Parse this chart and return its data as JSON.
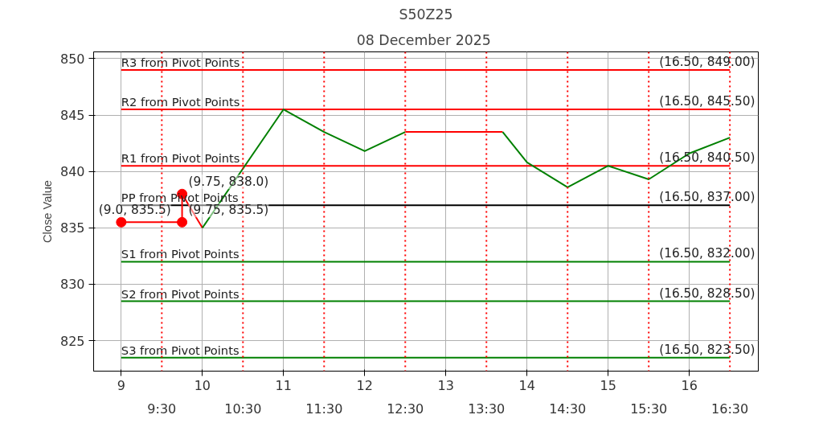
{
  "chart_data": {
    "type": "line",
    "title": "S50Z25",
    "subtitle": "08 December  2025",
    "ylabel": "Close Value",
    "xlim": [
      8.66,
      16.85
    ],
    "ylim": [
      822.3,
      850.6
    ],
    "xticks": [
      9,
      10,
      11,
      12,
      13,
      14,
      15,
      16
    ],
    "x2ticks": [
      {
        "value": 9.5,
        "label": "9:30"
      },
      {
        "value": 10.5,
        "label": "10:30"
      },
      {
        "value": 11.5,
        "label": "11:30"
      },
      {
        "value": 12.5,
        "label": "12:30"
      },
      {
        "value": 13.5,
        "label": "13:30"
      },
      {
        "value": 14.5,
        "label": "14:30"
      },
      {
        "value": 15.5,
        "label": "15:30"
      },
      {
        "value": 16.5,
        "label": "16:30"
      }
    ],
    "yticks": [
      825,
      830,
      835,
      840,
      845,
      850
    ],
    "x2lim": [
      8.66,
      16.85
    ],
    "grid": true,
    "series": [
      {
        "color": "#ff0000",
        "marker": "circle",
        "x": [
          9,
          9.75,
          9.75
        ],
        "values": [
          835.5,
          835.5,
          838.0
        ]
      },
      {
        "color": "#ff0000",
        "marker": "none",
        "x": [
          9.75,
          10
        ],
        "values": [
          838.0,
          835.0
        ]
      },
      {
        "color": "#008000",
        "marker": "none",
        "x": [
          10,
          11,
          11.5,
          12,
          12.5
        ],
        "values": [
          835.0,
          845.5,
          843.5,
          841.8,
          843.5
        ]
      },
      {
        "color": "#ff0000",
        "marker": "none",
        "x": [
          12.5,
          13.7
        ],
        "values": [
          843.5,
          843.5
        ]
      },
      {
        "color": "#008000",
        "marker": "none",
        "x": [
          13.7,
          14,
          14.5,
          15,
          15.5,
          16,
          16.5
        ],
        "values": [
          843.5,
          840.8,
          838.6,
          840.5,
          839.3,
          841.6,
          843.0
        ]
      }
    ],
    "ref_lines": [
      {
        "axis": "y",
        "value": 849.0,
        "label": "R3 from Pivot Points",
        "color": "#ff0000"
      },
      {
        "axis": "y",
        "value": 845.5,
        "label": "R2 from Pivot Points",
        "color": "#ff0000"
      },
      {
        "axis": "y",
        "value": 840.5,
        "label": "R1 from Pivot Points",
        "color": "#ff0000"
      },
      {
        "axis": "y",
        "value": 837.0,
        "label": "PP from Pivot Points",
        "color": "#000000"
      },
      {
        "axis": "y",
        "value": 832.0,
        "label": "S1 from Pivot Points",
        "color": "#008000"
      },
      {
        "axis": "y",
        "value": 828.5,
        "label": "S2 from Pivot Points",
        "color": "#008000"
      },
      {
        "axis": "y",
        "value": 823.5,
        "label": "S3 from Pivot Points",
        "color": "#008000"
      },
      {
        "axis": "x",
        "value": 9.5,
        "color": "#ff0000",
        "line_style": "dotted"
      },
      {
        "axis": "x",
        "value": 10.5,
        "color": "#ff0000",
        "line_style": "dotted"
      },
      {
        "axis": "x",
        "value": 11.5,
        "color": "#ff0000",
        "line_style": "dotted"
      },
      {
        "axis": "x",
        "value": 12.5,
        "color": "#ff0000",
        "line_style": "dotted"
      },
      {
        "axis": "x",
        "value": 13.5,
        "color": "#ff0000",
        "line_style": "dotted"
      },
      {
        "axis": "x",
        "value": 14.5,
        "color": "#ff0000",
        "line_style": "dotted"
      },
      {
        "axis": "x",
        "value": 15.5,
        "color": "#ff0000",
        "line_style": "dotted"
      },
      {
        "axis": "x",
        "value": 16.5,
        "color": "#ff0000",
        "line_style": "dotted"
      }
    ],
    "annotations": [
      {
        "text": "(9.0, 835.5)",
        "x": 9,
        "y": 835.5
      },
      {
        "text": "(9.75, 835.5)",
        "x": 9.75,
        "y": 835.5
      },
      {
        "text": "(9.75, 838.0)",
        "x": 9.75,
        "y": 838.0
      },
      {
        "text": "(16.50, 849.00)",
        "x": 16.5,
        "y": 849.0
      },
      {
        "text": "(16.50, 845.50)",
        "x": 16.5,
        "y": 845.5
      },
      {
        "text": "(16.50, 840.50)",
        "x": 16.5,
        "y": 840.5
      },
      {
        "text": "(16.50, 837.00)",
        "x": 16.5,
        "y": 837.0
      },
      {
        "text": "(16.50, 832.00)",
        "x": 16.5,
        "y": 832.0
      },
      {
        "text": "(16.50, 828.50)",
        "x": 16.5,
        "y": 828.5
      },
      {
        "text": "(16.50, 823.50)",
        "x": 16.5,
        "y": 823.5
      }
    ]
  }
}
